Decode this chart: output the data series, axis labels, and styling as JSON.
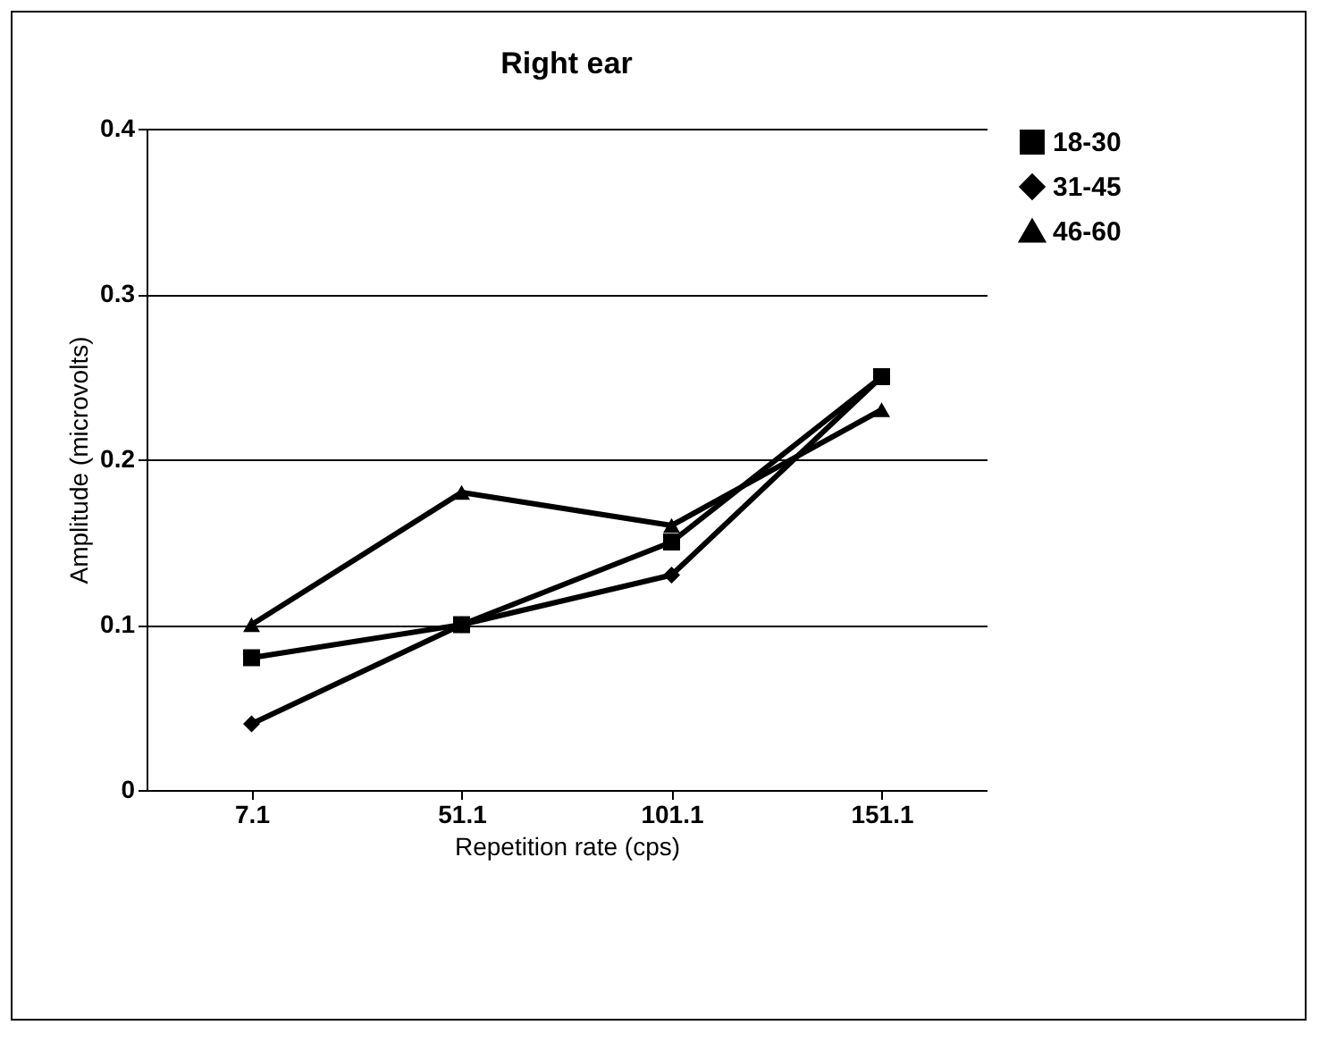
{
  "chart_data": {
    "type": "line",
    "title": "Right ear",
    "xlabel": "Repetition rate (cps)",
    "ylabel": "Amplitude (microvolts)",
    "categories": [
      "7.1",
      "51.1",
      "101.1",
      "151.1"
    ],
    "series": [
      {
        "name": "18-30",
        "color": "#000000",
        "marker": "square",
        "values": [
          0.08,
          0.1,
          0.15,
          0.25
        ]
      },
      {
        "name": "31-45",
        "color": "#000000",
        "marker": "diamond",
        "values": [
          0.04,
          0.1,
          0.13,
          0.25
        ]
      },
      {
        "name": "46-60",
        "color": "#000000",
        "marker": "triangle",
        "values": [
          0.1,
          0.18,
          0.16,
          0.23
        ]
      }
    ],
    "ylim": [
      0,
      0.4
    ],
    "yticks": [
      0,
      0.1,
      0.2,
      0.3,
      0.4
    ],
    "grid": "y",
    "legend": "right",
    "line_style": "solid"
  }
}
